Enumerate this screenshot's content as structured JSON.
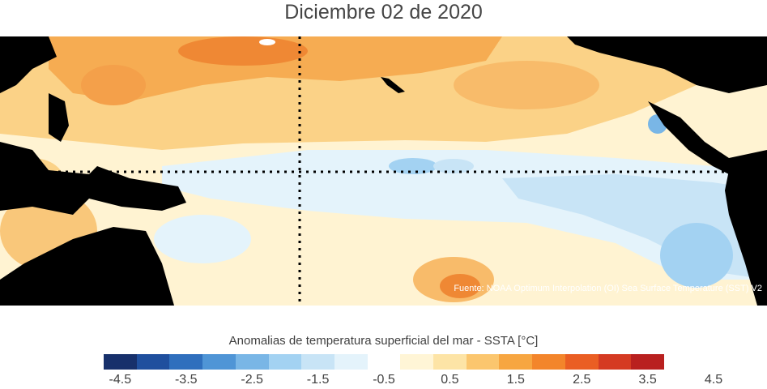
{
  "title": "Diciembre 02 de 2020",
  "source": "Fuente: NOAA Optimum Interpolation (OI) Sea Surface Temperature (SST) V2",
  "colorbar": {
    "label": "Anomalias de temperatura superficial del mar - SSTA  [°C]",
    "colors": [
      "#17306b",
      "#1f4f9e",
      "#2f6fbd",
      "#4f95d6",
      "#79b6e6",
      "#a3d2f2",
      "#c8e4f6",
      "#e4f3fb",
      "#ffffff",
      "#fff5d6",
      "#fde4a6",
      "#fbc66e",
      "#f7a641",
      "#f3852b",
      "#ea5e23",
      "#d53a22",
      "#b9201f"
    ],
    "ticks": [
      "-4.5",
      "-3.5",
      "-2.5",
      "-1.5",
      "-0.5",
      "0.5",
      "1.5",
      "2.5",
      "3.5",
      "4.5"
    ]
  }
}
